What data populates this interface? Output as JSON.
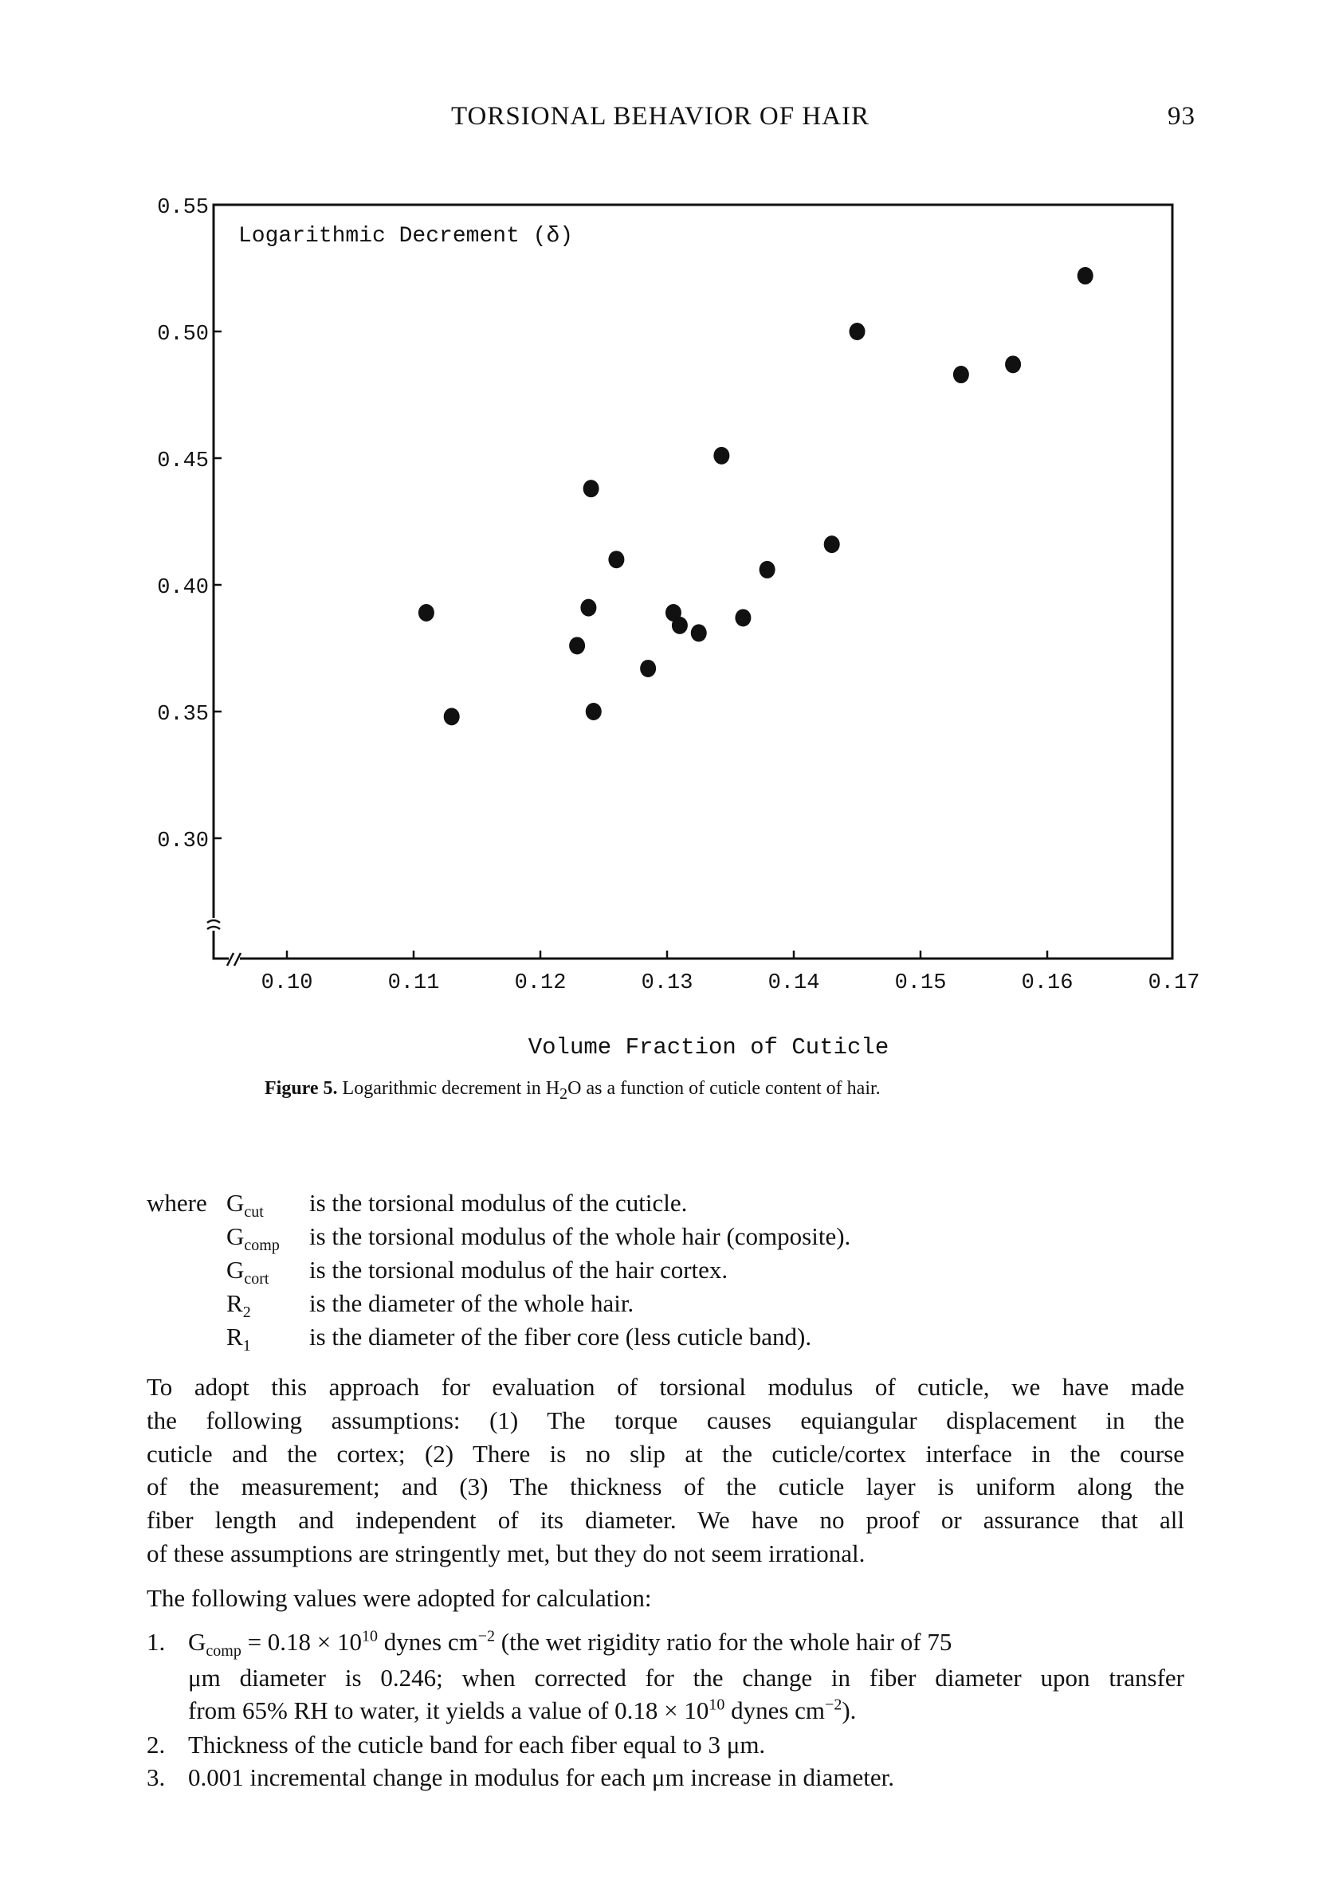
{
  "header": {
    "running_title": "TORSIONAL BEHAVIOR OF HAIR",
    "page_number": "93"
  },
  "chart_data": {
    "type": "scatter",
    "title": "",
    "ylabel": "Logarithmic Decrement (δ)",
    "xlabel": "Volume Fraction of Cuticle",
    "xlim": [
      0.094,
      0.17
    ],
    "ylim": [
      0.252,
      0.55
    ],
    "x_ticks": [
      "0.10",
      "0.11",
      "0.12",
      "0.13",
      "0.14",
      "0.15",
      "0.16",
      "0.17"
    ],
    "y_ticks": [
      "0.55",
      "0.50",
      "0.45",
      "0.40",
      "0.35",
      "0.30"
    ],
    "axis_breaks": true,
    "grid": false,
    "marker_color": "#111111",
    "points": [
      {
        "x": 0.111,
        "y": 0.389
      },
      {
        "x": 0.113,
        "y": 0.348
      },
      {
        "x": 0.124,
        "y": 0.438
      },
      {
        "x": 0.126,
        "y": 0.41
      },
      {
        "x": 0.1238,
        "y": 0.391
      },
      {
        "x": 0.1229,
        "y": 0.376
      },
      {
        "x": 0.1242,
        "y": 0.35
      },
      {
        "x": 0.1285,
        "y": 0.367
      },
      {
        "x": 0.1305,
        "y": 0.389
      },
      {
        "x": 0.131,
        "y": 0.384
      },
      {
        "x": 0.1325,
        "y": 0.381
      },
      {
        "x": 0.1343,
        "y": 0.451
      },
      {
        "x": 0.136,
        "y": 0.387
      },
      {
        "x": 0.1379,
        "y": 0.406
      },
      {
        "x": 0.143,
        "y": 0.416
      },
      {
        "x": 0.145,
        "y": 0.5
      },
      {
        "x": 0.1532,
        "y": 0.483
      },
      {
        "x": 0.1573,
        "y": 0.487
      },
      {
        "x": 0.163,
        "y": 0.522
      }
    ]
  },
  "caption": {
    "label": "Figure 5.",
    "text_before": " Logarithmic decrement in H",
    "sub": "2",
    "text_after": "O as a function of cuticle content of hair."
  },
  "definitions": {
    "lead": "where",
    "items": [
      {
        "symbol": "G",
        "sub": "cut",
        "text": "is the torsional modulus of the cuticle."
      },
      {
        "symbol": "G",
        "sub": "comp",
        "text": "is the torsional modulus of the whole hair (composite)."
      },
      {
        "symbol": "G",
        "sub": "cort",
        "text": "is the torsional modulus of the hair cortex."
      },
      {
        "symbol": "R",
        "sub": "2",
        "text": "is the diameter of the whole hair."
      },
      {
        "symbol": "R",
        "sub": "1",
        "text": "is the diameter of the fiber core (less cuticle band)."
      }
    ]
  },
  "paragraph": {
    "lines": [
      "To adopt this approach for evaluation of torsional modulus of cuticle, we have made",
      "the following assumptions: (1) The torque causes equiangular displacement in the",
      "cuticle and the cortex; (2) There is no slip at the cuticle/cortex interface in the course",
      "of the measurement; and (3) The thickness of the cuticle layer is uniform along the",
      "fiber length and independent of its diameter. We have no proof or assurance that all",
      "of these assumptions are stringently met, but they do not seem irrational."
    ]
  },
  "values_intro": "The following values were adopted for calculation:",
  "list": {
    "item1": {
      "num": "1.",
      "g": "G",
      "g_sub": "comp",
      "eq": " = 0.18 × 10",
      "exp1": "10",
      "unit1": " dynes cm",
      "exp2": "−2",
      "rest1": " (the wet rigidity ratio for the whole hair of 75",
      "line2": "μm diameter is 0.246; when corrected for the change in fiber diameter upon transfer",
      "line3a": "from 65% RH to water, it yields a value of 0.18 × 10",
      "exp3": "10",
      "line3b": " dynes cm",
      "exp4": "−2",
      "line3c": ")."
    },
    "item2": {
      "num": "2.",
      "text": "Thickness of the cuticle band for each fiber equal to 3 μm."
    },
    "item3": {
      "num": "3.",
      "text": "0.001 incremental change in modulus for each μm increase in diameter."
    }
  }
}
